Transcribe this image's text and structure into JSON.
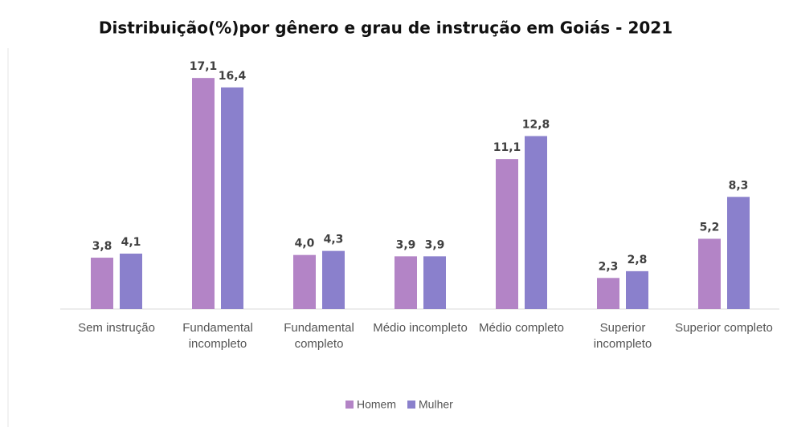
{
  "chart_data": {
    "type": "bar",
    "title": "Distribuição(%)por gênero e grau de instrução em Goiás - 2021",
    "categories": [
      "Sem instrução",
      "Fundamental incompleto",
      "Fundamental completo",
      "Médio incompleto",
      "Médio completo",
      "Superior incompleto",
      "Superior completo"
    ],
    "series": [
      {
        "name": "Homem",
        "color": "#b384c6",
        "values": [
          3.8,
          17.1,
          4.0,
          3.9,
          11.1,
          2.3,
          5.2
        ],
        "value_labels": [
          "3,8",
          "17,1",
          "4,0",
          "3,9",
          "11,1",
          "2,3",
          "5,2"
        ]
      },
      {
        "name": "Mulher",
        "color": "#8a80cc",
        "values": [
          4.1,
          16.4,
          4.3,
          3.9,
          12.8,
          2.8,
          8.3
        ],
        "value_labels": [
          "4,1",
          "16,4",
          "4,3",
          "3,9",
          "12,8",
          "2,8",
          "8,3"
        ]
      }
    ],
    "ylim": [
      0,
      18
    ],
    "legend": "bottom"
  }
}
